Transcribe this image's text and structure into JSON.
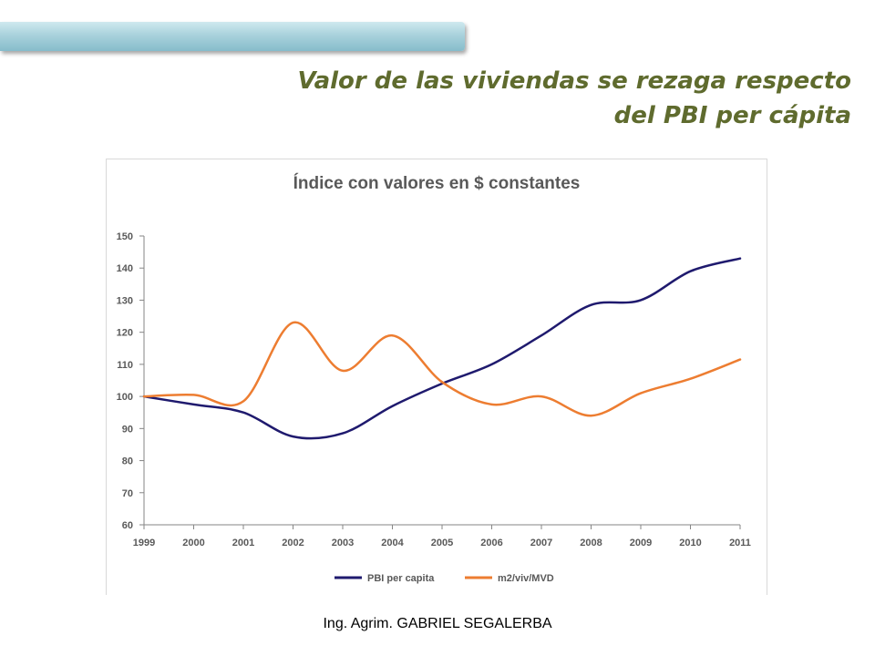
{
  "header": {
    "title_line1": "Valor de las viviendas se rezaga respecto",
    "title_line2": "del PBI per cápita",
    "title_color": "#5f6b2e",
    "bar_color": "#a9d2dc"
  },
  "chart_data": {
    "type": "line",
    "title": "Índice con valores en $ constantes",
    "x": [
      "1999",
      "2000",
      "2001",
      "2002",
      "2003",
      "2004",
      "2005",
      "2006",
      "2007",
      "2008",
      "2009",
      "2010",
      "2011"
    ],
    "ylim": [
      60,
      150
    ],
    "yticks": [
      60,
      70,
      80,
      90,
      100,
      110,
      120,
      130,
      140,
      150
    ],
    "grid": false,
    "legend_position": "bottom",
    "series": [
      {
        "name": "PBI per capita",
        "color": "#1f1a6e",
        "values": [
          100,
          97.5,
          95,
          87.5,
          88.5,
          97,
          104,
          110,
          119,
          128.5,
          130,
          139,
          143
        ]
      },
      {
        "name": "m2/viv/MVD",
        "color": "#ed7d31",
        "values": [
          100,
          100.5,
          98.5,
          123,
          108,
          119,
          104.5,
          97.5,
          100,
          94,
          101,
          105.5,
          111.5
        ]
      }
    ]
  },
  "footer": {
    "text": "Ing. Agrim. GABRIEL SEGALERBA"
  }
}
